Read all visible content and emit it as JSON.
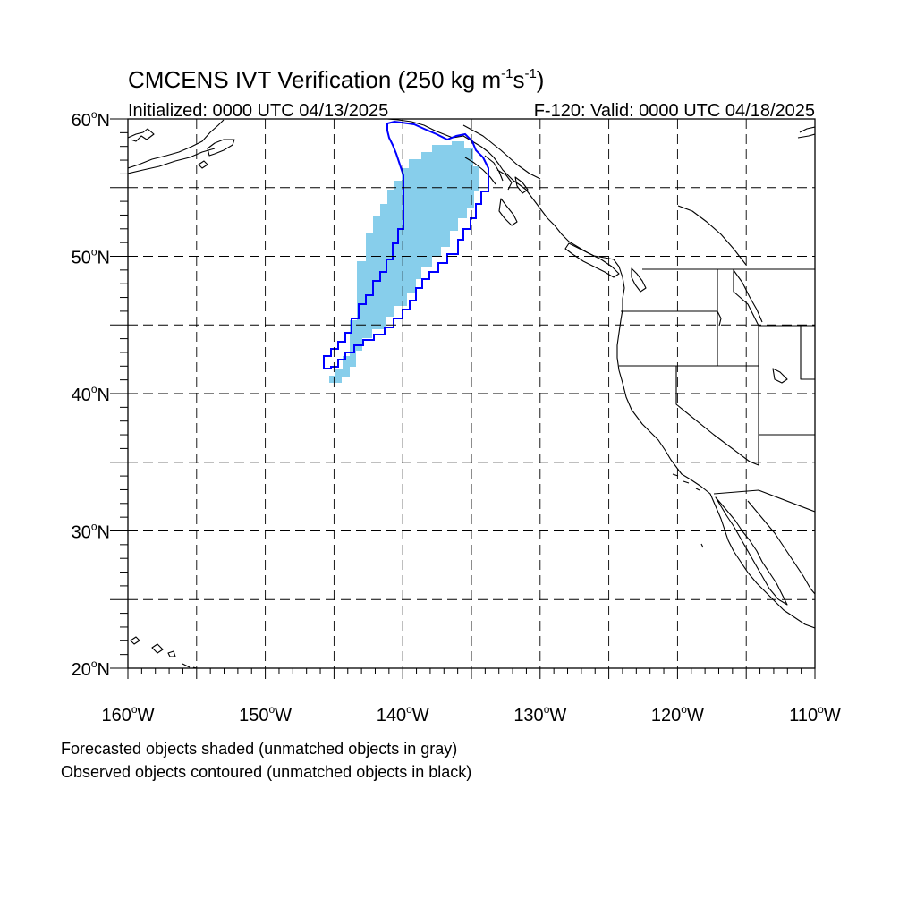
{
  "title_main": "CMCENS IVT Verification (250 kg m",
  "title_sup1": "-1",
  "title_mid": "s",
  "title_sup2": "-1",
  "title_end": ")",
  "initialized": "Initialized: 0000 UTC 04/13/2025",
  "valid": "F-120: Valid: 0000 UTC 04/18/2025",
  "lat_labels": [
    {
      "deg": "60",
      "hemi": "N",
      "value": 60
    },
    {
      "deg": "50",
      "hemi": "N",
      "value": 50
    },
    {
      "deg": "40",
      "hemi": "N",
      "value": 40
    },
    {
      "deg": "30",
      "hemi": "N",
      "value": 30
    },
    {
      "deg": "20",
      "hemi": "N",
      "value": 20
    }
  ],
  "lon_labels": [
    {
      "deg": "160",
      "hemi": "W",
      "value": -160
    },
    {
      "deg": "150",
      "hemi": "W",
      "value": -150
    },
    {
      "deg": "140",
      "hemi": "W",
      "value": -140
    },
    {
      "deg": "130",
      "hemi": "W",
      "value": -130
    },
    {
      "deg": "120",
      "hemi": "W",
      "value": -120
    },
    {
      "deg": "110",
      "hemi": "W",
      "value": -110
    }
  ],
  "map": {
    "lon_range": [
      -160,
      -110
    ],
    "lat_range": [
      20,
      60
    ],
    "grid_lines": "dashed every 5 degrees",
    "forecast_color": "#87ceeb",
    "observed_color": "#0000ff",
    "coast_color": "#000000"
  },
  "legend_line1": "Forecasted objects shaded (unmatched objects in gray)",
  "legend_line2": "Observed objects contoured (unmatched objects in black)"
}
